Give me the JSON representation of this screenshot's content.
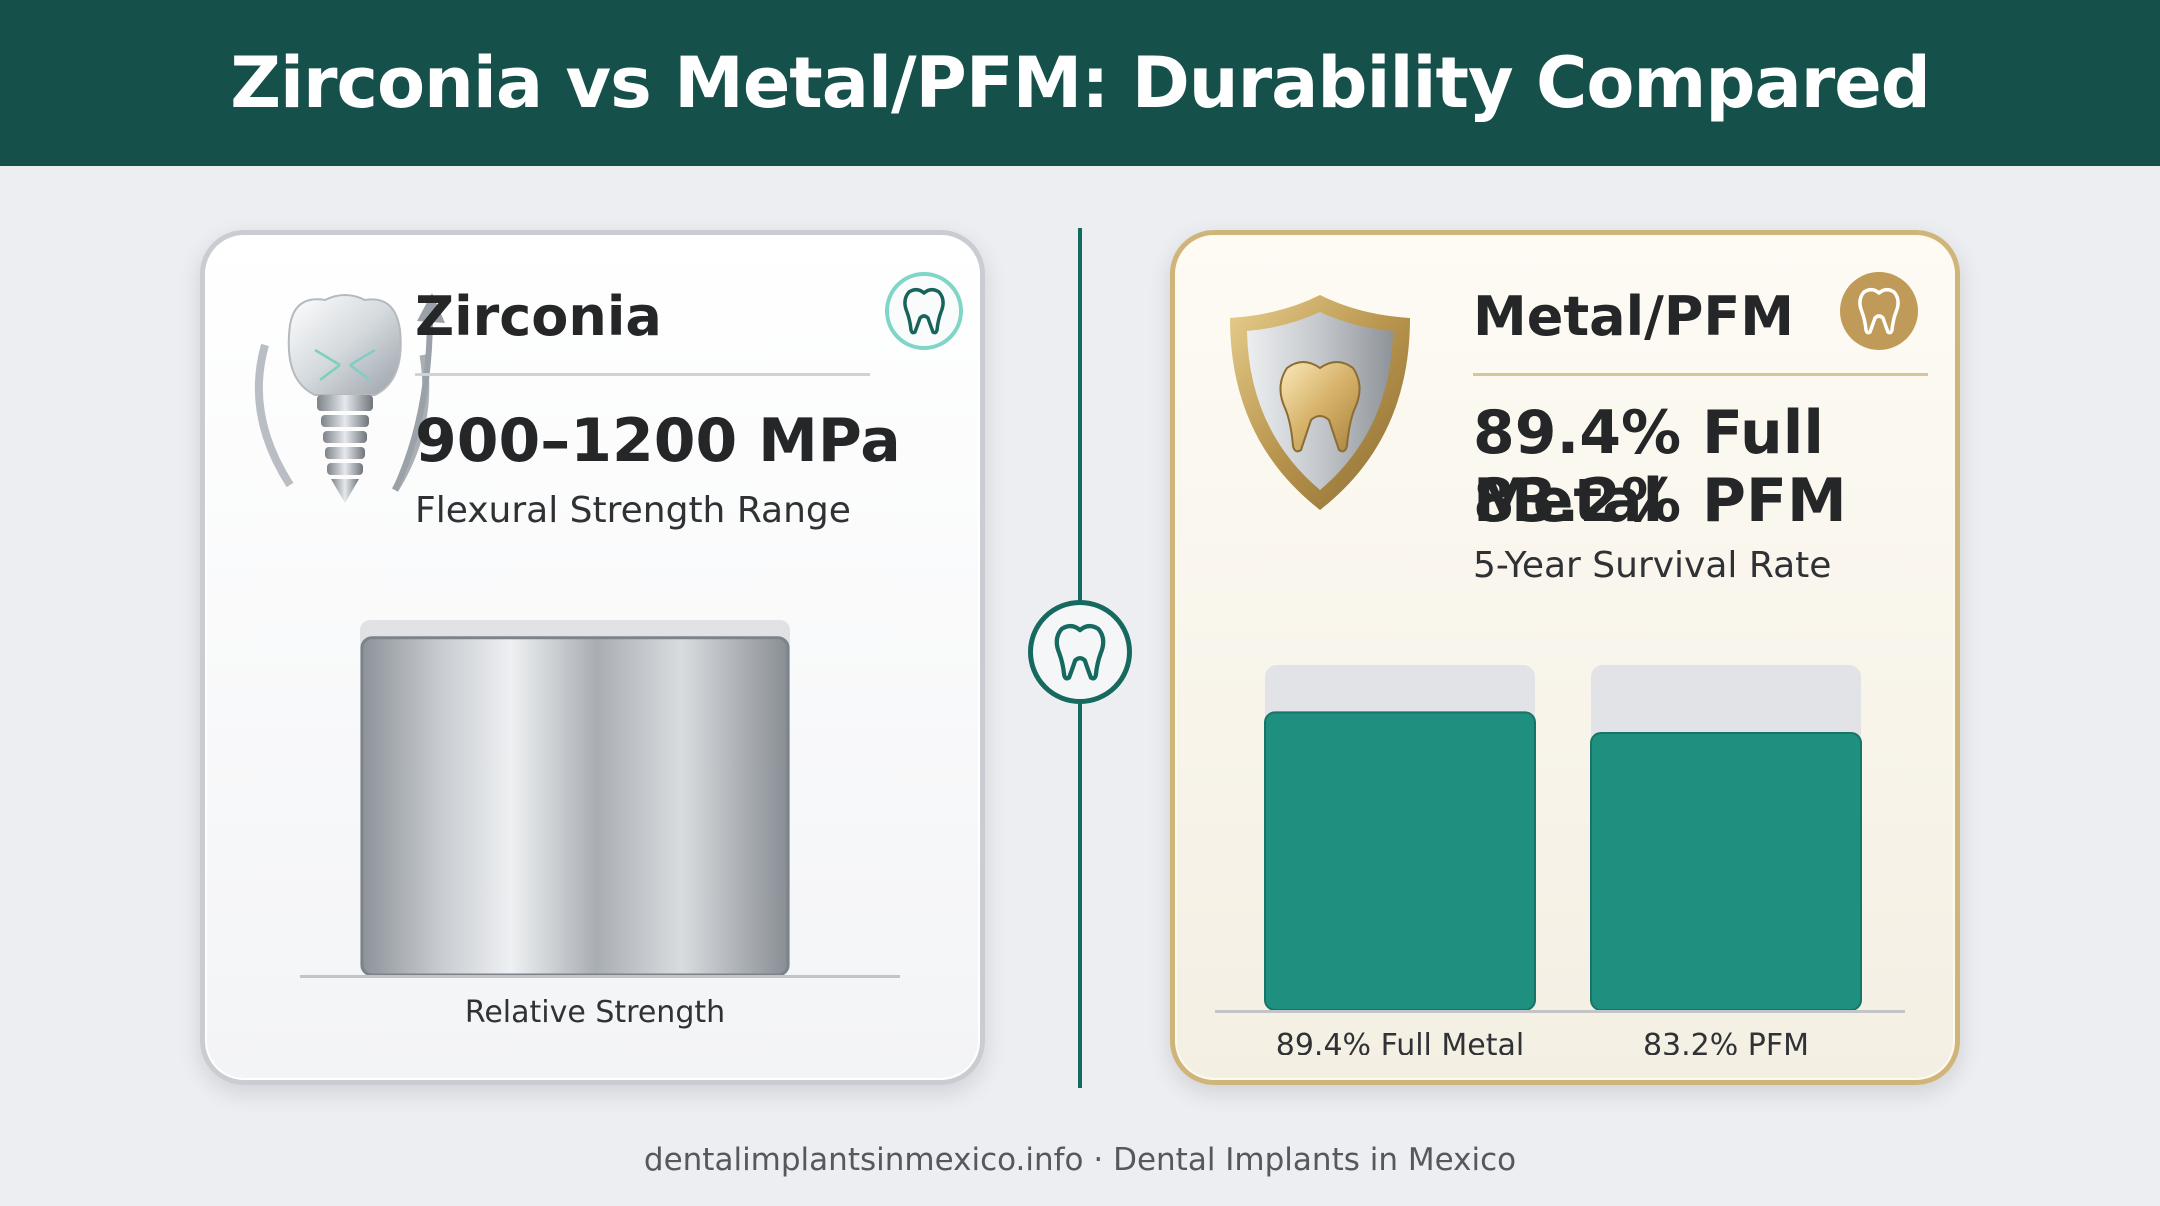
{
  "header": {
    "title": "Zirconia vs Metal/PFM: Durability Compared"
  },
  "zirconia_card": {
    "title": "Zirconia",
    "stat": "900–1200 MPa",
    "stat_label": "Flexural Strength Range",
    "axis_label": "Relative Strength",
    "icon": "implant-icon",
    "badge_icon": "tooth-icon"
  },
  "metal_card": {
    "title": "Metal/PFM",
    "stat_line1": "89.4% Full Metal",
    "stat_line2": "83.2% PFM",
    "stat_label": "5-Year Survival Rate",
    "icon": "shield-tooth-icon",
    "badge_icon": "tooth-icon"
  },
  "center_badge": {
    "icon": "tooth-icon"
  },
  "footer": {
    "text": "dentalimplantsinmexico.info · Dental Implants in Mexico"
  },
  "colors": {
    "header_bg": "#15504a",
    "bar_green": "#1f8f80",
    "gold": "#c9a862",
    "teal": "#16695f"
  },
  "chart_data": [
    {
      "type": "bar",
      "categories": [
        ""
      ],
      "values": [
        95
      ],
      "xlabel": "Relative Strength",
      "ylim": [
        0,
        100
      ]
    },
    {
      "type": "bar",
      "categories": [
        "89.4% Full Metal",
        "83.2% PFM"
      ],
      "values": [
        89.4,
        83.2
      ],
      "ylim": [
        0,
        100
      ]
    }
  ]
}
